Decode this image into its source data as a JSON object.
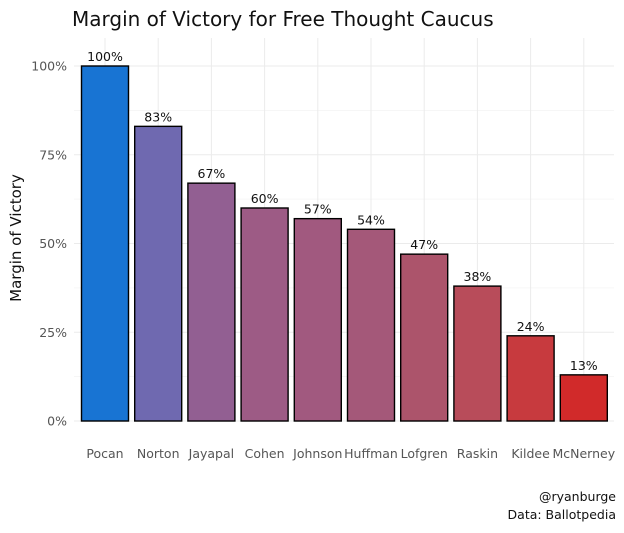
{
  "chart_data": {
    "type": "bar",
    "title": "Margin of Victory for Free Thought Caucus",
    "xlabel": "",
    "ylabel": "Margin of Victory",
    "categories": [
      "Pocan",
      "Norton",
      "Jayapal",
      "Cohen",
      "Johnson",
      "Huffman",
      "Lofgren",
      "Raskin",
      "Kildee",
      "McNerney"
    ],
    "values": [
      100,
      83,
      67,
      60,
      57,
      54,
      47,
      38,
      24,
      13
    ],
    "value_labels": [
      "100%",
      "83%",
      "67%",
      "60%",
      "57%",
      "54%",
      "47%",
      "38%",
      "24%",
      "13%"
    ],
    "bar_colors": [
      "#1874d3",
      "#6f69b0",
      "#925f92",
      "#9d5b85",
      "#a1597f",
      "#a45879",
      "#ac546b",
      "#b84c5a",
      "#c73a3e",
      "#d12a2a"
    ],
    "yticks": [
      0,
      25,
      50,
      75,
      100
    ],
    "ytick_labels": [
      "0%",
      "25%",
      "50%",
      "75%",
      "100%"
    ],
    "ylim": [
      0,
      100
    ],
    "grid": true,
    "caption_lines": [
      "@ryanburge",
      "Data: Ballotpedia"
    ]
  }
}
